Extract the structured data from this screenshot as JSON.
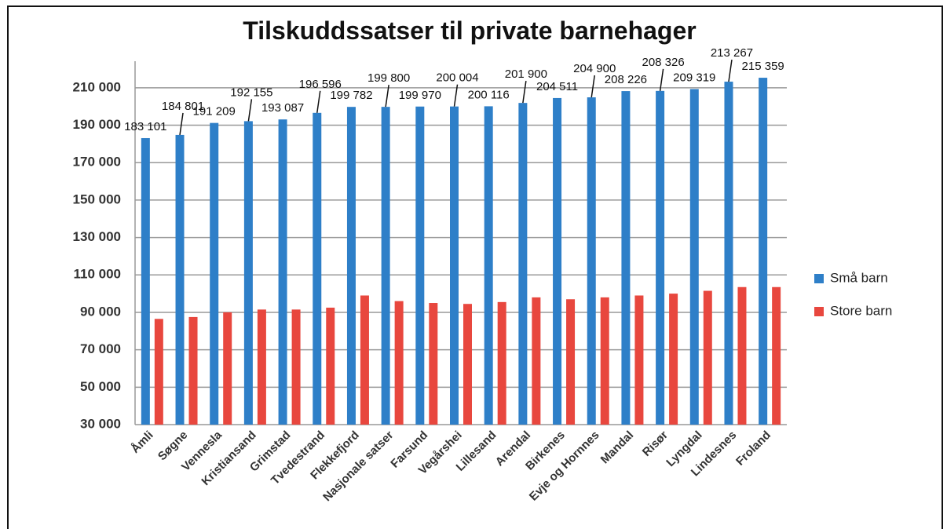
{
  "chart_data": {
    "type": "bar",
    "title": "Tilskuddssatser til private barnehager",
    "categories": [
      "Åmli",
      "Søgne",
      "Vennesla",
      "Kristiansand",
      "Grimstad",
      "Tvedestrand",
      "Flekkefjord",
      "Nasjonale satser",
      "Farsund",
      "Vegårshei",
      "Lillesand",
      "Arendal",
      "Birkenes",
      "Evje og Hornnes",
      "Mandal",
      "Risør",
      "Lyngdal",
      "Lindesnes",
      "Froland"
    ],
    "series": [
      {
        "name": "Små barn",
        "color": "#2e7fc8",
        "values": [
          183101,
          184801,
          191209,
          192155,
          193087,
          196596,
          199782,
          199800,
          199970,
          200004,
          200116,
          201900,
          204511,
          204900,
          208226,
          208326,
          209319,
          213267,
          215359
        ],
        "value_labels": [
          "183 101",
          "184 801",
          "191 209",
          "192 155",
          "193 087",
          "196 596",
          "199 782",
          "199 800",
          "199 970",
          "200 004",
          "200 116",
          "201 900",
          "204 511",
          "204 900",
          "208 226",
          "208 326",
          "209 319",
          "213 267",
          "215 359"
        ]
      },
      {
        "name": "Store barn",
        "color": "#e8473e",
        "values": [
          86500,
          87500,
          90000,
          91500,
          91500,
          92500,
          99000,
          96000,
          95000,
          94500,
          95500,
          98000,
          97000,
          98000,
          99000,
          100000,
          101500,
          103500,
          103500
        ]
      }
    ],
    "ylim": [
      30000,
      220000
    ],
    "yticks": [
      {
        "value": 30000,
        "label": "30 000"
      },
      {
        "value": 50000,
        "label": "50 000"
      },
      {
        "value": 70000,
        "label": "70 000"
      },
      {
        "value": 90000,
        "label": "90 000"
      },
      {
        "value": 110000,
        "label": "110 000"
      },
      {
        "value": 130000,
        "label": "130 000"
      },
      {
        "value": 150000,
        "label": "150 000"
      },
      {
        "value": 170000,
        "label": "170 000"
      },
      {
        "value": 190000,
        "label": "190 000"
      },
      {
        "value": 210000,
        "label": "210 000"
      }
    ],
    "grid": true,
    "legend": "right"
  }
}
